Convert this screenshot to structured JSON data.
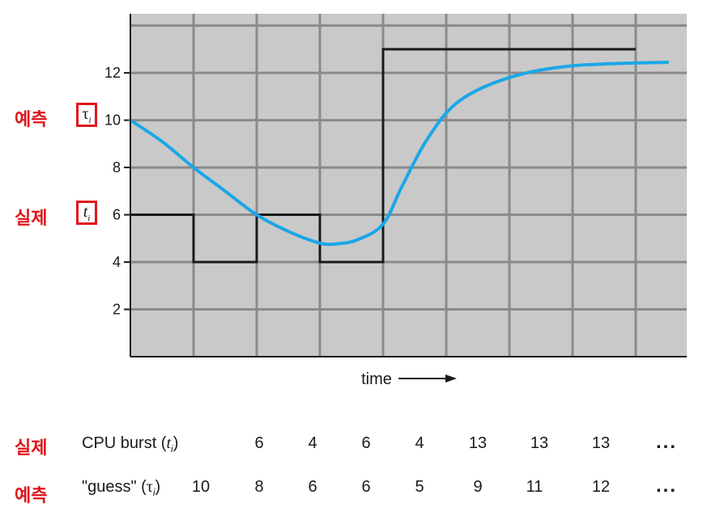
{
  "chart_data": {
    "type": "line",
    "xlabel": "time",
    "y_ticks": [
      "2",
      "4",
      "6",
      "8",
      "10",
      "12"
    ],
    "ylim": [
      0,
      14.5
    ],
    "xlim": [
      0,
      8.75
    ],
    "grid": true,
    "series": [
      {
        "name": "CPU burst (t_i)",
        "style": "step",
        "color": "#1a1a1a",
        "values": [
          6,
          4,
          6,
          4,
          13,
          13,
          13,
          13
        ]
      },
      {
        "name": "guess (tau_i)",
        "style": "smooth",
        "color": "#1aa7e8",
        "x": [
          0,
          0.5,
          1,
          1.5,
          2,
          2.5,
          3,
          3.3,
          3.6,
          4,
          4.3,
          4.7,
          5.2,
          6,
          7,
          8.5
        ],
        "y": [
          10,
          9.1,
          8,
          7,
          6,
          5.3,
          4.8,
          4.78,
          4.95,
          5.6,
          7.2,
          9.2,
          10.8,
          11.8,
          12.3,
          12.45
        ]
      }
    ]
  },
  "labels": {
    "predict_kr": "예측",
    "actual_kr": "실제",
    "tau_symbol": "τ",
    "t_symbol": "t",
    "sub_i": "i"
  },
  "table": {
    "actual": {
      "label_kr": "실제",
      "name_prefix": "CPU burst (",
      "name_symbol": "t",
      "name_suffix": ")",
      "values": [
        "6",
        "4",
        "6",
        "4",
        "13",
        "13",
        "13"
      ],
      "ellipsis": "..."
    },
    "guess": {
      "label_kr": "예측",
      "name_prefix": "\"guess\" (",
      "name_symbol": "τ",
      "name_suffix": ")",
      "values": [
        "10",
        "8",
        "6",
        "6",
        "5",
        "9",
        "11",
        "12"
      ],
      "ellipsis": "..."
    }
  }
}
